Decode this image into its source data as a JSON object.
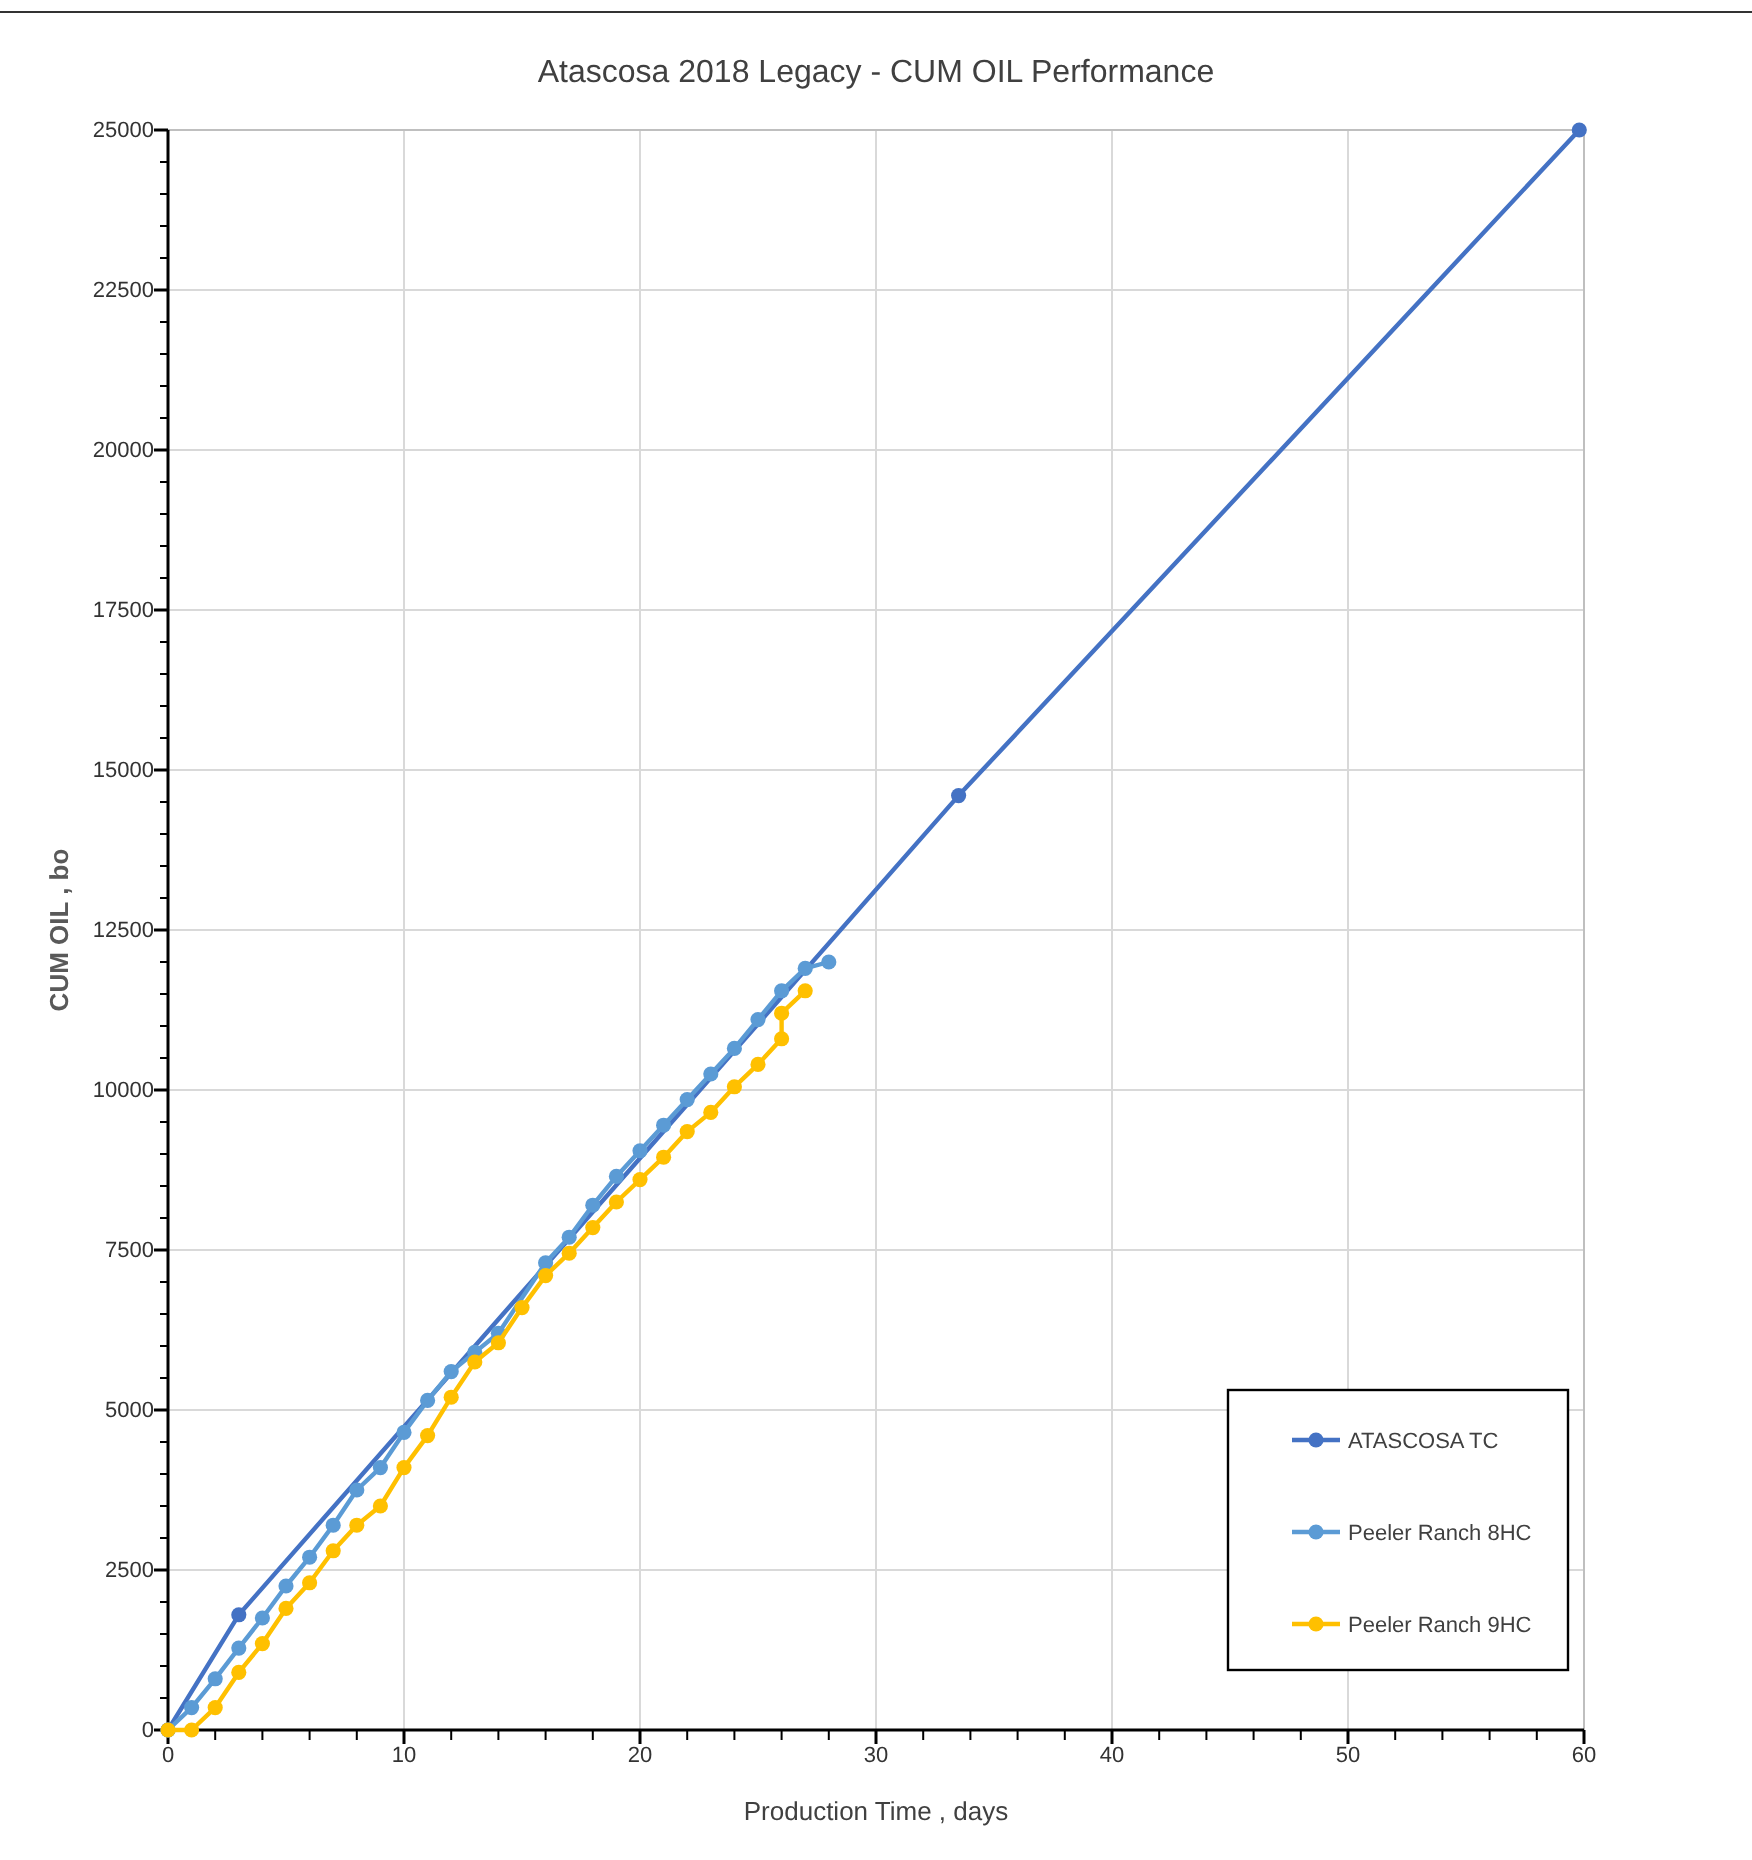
{
  "chart_data": {
    "type": "line",
    "title": "Atascosa 2018 Legacy - CUM OIL Performance",
    "xlabel": "Production Time , days",
    "ylabel": "CUM OIL , bo",
    "xlim": [
      0,
      60
    ],
    "ylim": [
      0,
      25000
    ],
    "xticks": [
      0,
      {
        "value": 2,
        "label": null
      },
      {
        "value": 4,
        "label": null
      },
      {
        "value": 6,
        "label": null
      },
      {
        "value": 8,
        "label": null
      },
      10,
      {
        "value": 12,
        "label": null
      },
      {
        "value": 14,
        "label": null
      },
      {
        "value": 16,
        "label": null
      },
      {
        "value": 18,
        "label": null
      },
      20,
      {
        "value": 22,
        "label": null
      },
      {
        "value": 24,
        "label": null
      },
      {
        "value": 26,
        "label": null
      },
      {
        "value": 28,
        "label": null
      },
      30,
      {
        "value": 32,
        "label": null
      },
      {
        "value": 34,
        "label": null
      },
      {
        "value": 36,
        "label": null
      },
      {
        "value": 38,
        "label": null
      },
      40,
      {
        "value": 42,
        "label": null
      },
      {
        "value": 44,
        "label": null
      },
      {
        "value": 46,
        "label": null
      },
      {
        "value": 48,
        "label": null
      },
      50,
      {
        "value": 52,
        "label": null
      },
      {
        "value": 54,
        "label": null
      },
      {
        "value": 56,
        "label": null
      },
      {
        "value": 58,
        "label": null
      },
      60
    ],
    "yticks": [
      0,
      {
        "value": 500,
        "label": null
      },
      {
        "value": 1000,
        "label": null
      },
      {
        "value": 1500,
        "label": null
      },
      {
        "value": 2000,
        "label": null
      },
      2500,
      {
        "value": 3000,
        "label": null
      },
      {
        "value": 3500,
        "label": null
      },
      {
        "value": 4000,
        "label": null
      },
      {
        "value": 4500,
        "label": null
      },
      5000,
      {
        "value": 5500,
        "label": null
      },
      {
        "value": 6000,
        "label": null
      },
      {
        "value": 6500,
        "label": null
      },
      {
        "value": 7000,
        "label": null
      },
      7500,
      {
        "value": 8000,
        "label": null
      },
      {
        "value": 8500,
        "label": null
      },
      {
        "value": 9000,
        "label": null
      },
      {
        "value": 9500,
        "label": null
      },
      10000,
      {
        "value": 10500,
        "label": null
      },
      {
        "value": 11000,
        "label": null
      },
      {
        "value": 11500,
        "label": null
      },
      {
        "value": 12000,
        "label": null
      },
      12500,
      {
        "value": 13000,
        "label": null
      },
      {
        "value": 13500,
        "label": null
      },
      {
        "value": 14000,
        "label": null
      },
      {
        "value": 14500,
        "label": null
      },
      15000,
      {
        "value": 15500,
        "label": null
      },
      {
        "value": 16000,
        "label": null
      },
      {
        "value": 16500,
        "label": null
      },
      {
        "value": 17000,
        "label": null
      },
      17500,
      {
        "value": 18000,
        "label": null
      },
      {
        "value": 18500,
        "label": null
      },
      {
        "value": 19000,
        "label": null
      },
      {
        "value": 19500,
        "label": null
      },
      20000,
      {
        "value": 20500,
        "label": null
      },
      {
        "value": 21000,
        "label": null
      },
      {
        "value": 21500,
        "label": null
      },
      {
        "value": 22000,
        "label": null
      },
      22500,
      {
        "value": 23000,
        "label": null
      },
      {
        "value": 23500,
        "label": null
      },
      {
        "value": 24000,
        "label": null
      },
      {
        "value": 24500,
        "label": null
      },
      25000
    ],
    "grid": true,
    "legend": "bottom right",
    "marker": "circle",
    "line_style": "solid",
    "series": [
      {
        "name": "ATASCOSA  TC",
        "color": "#4472c4",
        "x": [
          0,
          3,
          33.5,
          59.8
        ],
        "values": [
          0,
          1800,
          14600,
          25000
        ]
      },
      {
        "name": "Peeler Ranch 8HC",
        "color": "#5b9bd5",
        "x": [
          0,
          1,
          2,
          3,
          4,
          5,
          6,
          7,
          8,
          9,
          10,
          11,
          12,
          13,
          14,
          15,
          16,
          17,
          18,
          19,
          20,
          21,
          22,
          23,
          24,
          25,
          26,
          27,
          28
        ],
        "values": [
          0,
          350,
          800,
          1280,
          1750,
          2250,
          2700,
          3200,
          3750,
          4100,
          4650,
          5150,
          5600,
          5900,
          6200,
          null,
          7300,
          7700,
          8200,
          8650,
          9050,
          9450,
          9850,
          10250,
          10650,
          11100,
          11550,
          11900,
          12000
        ]
      },
      {
        "name": "Peeler Ranch 9HC",
        "color": "#ffc000",
        "x": [
          0,
          1,
          2,
          3,
          4,
          5,
          6,
          7,
          8,
          9,
          10,
          11,
          12,
          13,
          14,
          15,
          16,
          17,
          18,
          19,
          20,
          21,
          22,
          23,
          24,
          25,
          26,
          26,
          27
        ],
        "values": [
          0,
          0,
          350,
          900,
          1350,
          1900,
          2300,
          2800,
          3200,
          3500,
          4100,
          4600,
          5200,
          5750,
          6050,
          6600,
          7100,
          7450,
          7850,
          8250,
          8600,
          8950,
          9350,
          9650,
          10050,
          10400,
          10800,
          11200,
          11550
        ]
      }
    ]
  }
}
